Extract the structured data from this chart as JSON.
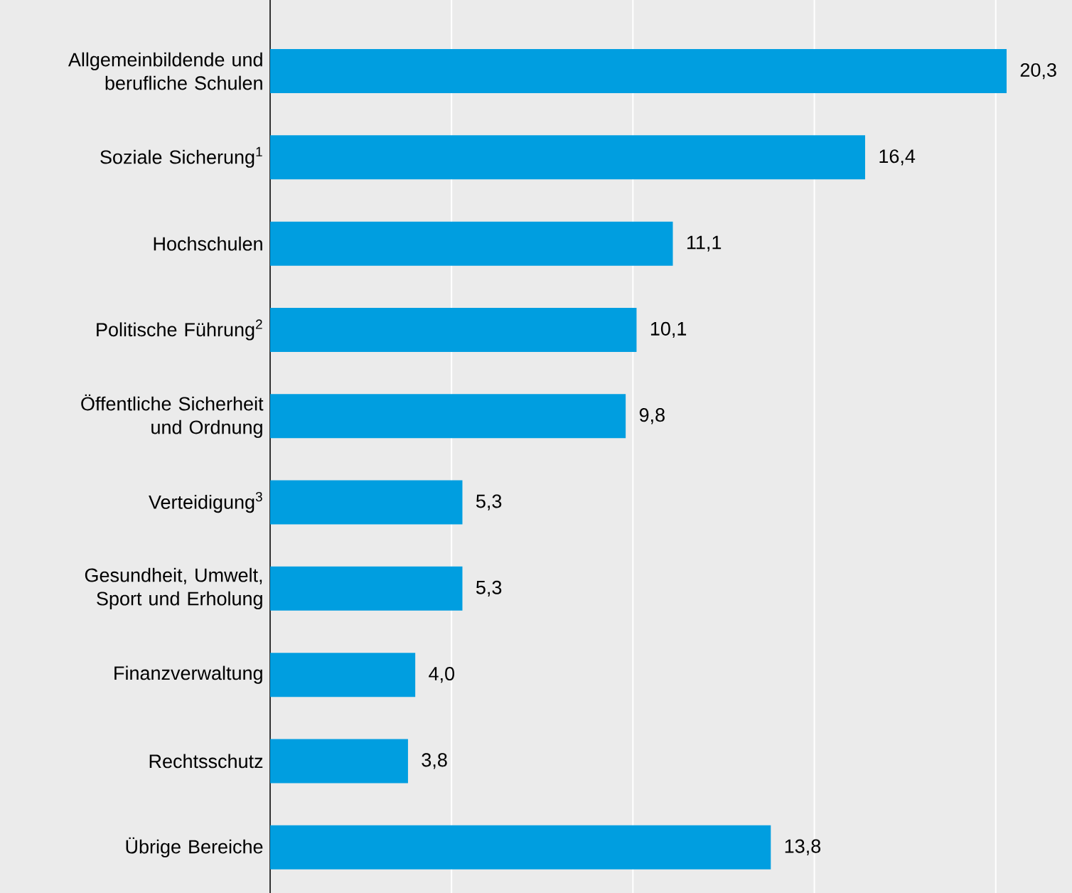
{
  "chart_data": {
    "type": "bar",
    "orientation": "horizontal",
    "categories": [
      "Allgemeinbildende und berufliche Schulen",
      "Soziale Sicherung$^{1}$",
      "Hochschulen",
      "Politische Führung$^{2}$",
      "Öffentliche Sicherheit und Ordnung",
      "Verteidigung$^{3}$",
      "Gesundheit, Umwelt, Sport und Erholung",
      "Finanzverwaltung",
      "Rechtsschutz",
      "Übrige Bereiche"
    ],
    "values": [
      20.3,
      16.4,
      11.1,
      10.1,
      9.8,
      5.3,
      5.3,
      4.0,
      3.8,
      13.8
    ],
    "value_labels": [
      "20,3",
      "16,4",
      "11,1",
      "10,1",
      "9,8",
      "5,3",
      "5,3",
      "4,0",
      "3,8",
      "13,8"
    ],
    "color": "#009ee0",
    "tick_labels": "y",
    "grid": "x"
  }
}
